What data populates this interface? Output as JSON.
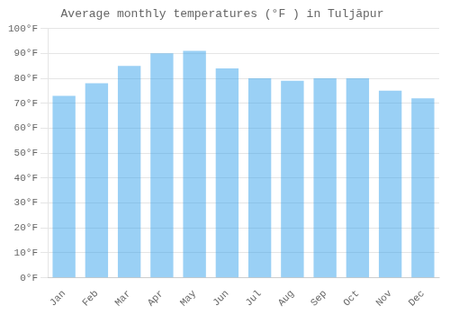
{
  "chart_data": {
    "type": "bar",
    "title": "Average monthly temperatures (°F ) in Tuljāpur",
    "categories": [
      "Jan",
      "Feb",
      "Mar",
      "Apr",
      "May",
      "Jun",
      "Jul",
      "Aug",
      "Sep",
      "Oct",
      "Nov",
      "Dec"
    ],
    "values": [
      73,
      78,
      85,
      90,
      91,
      84,
      80,
      79,
      80,
      80,
      75,
      72
    ],
    "ylim": [
      0,
      100
    ],
    "yticks": [
      {
        "value": 0,
        "label": "0°F"
      },
      {
        "value": 10,
        "label": "10°F"
      },
      {
        "value": 20,
        "label": "20°F"
      },
      {
        "value": 30,
        "label": "30°F"
      },
      {
        "value": 40,
        "label": "40°F"
      },
      {
        "value": 50,
        "label": "50°F"
      },
      {
        "value": 60,
        "label": "60°F"
      },
      {
        "value": 70,
        "label": "70°F"
      },
      {
        "value": 80,
        "label": "80°F"
      },
      {
        "value": 90,
        "label": "90°F"
      },
      {
        "value": 100,
        "label": "100°F"
      }
    ],
    "grid": true
  }
}
